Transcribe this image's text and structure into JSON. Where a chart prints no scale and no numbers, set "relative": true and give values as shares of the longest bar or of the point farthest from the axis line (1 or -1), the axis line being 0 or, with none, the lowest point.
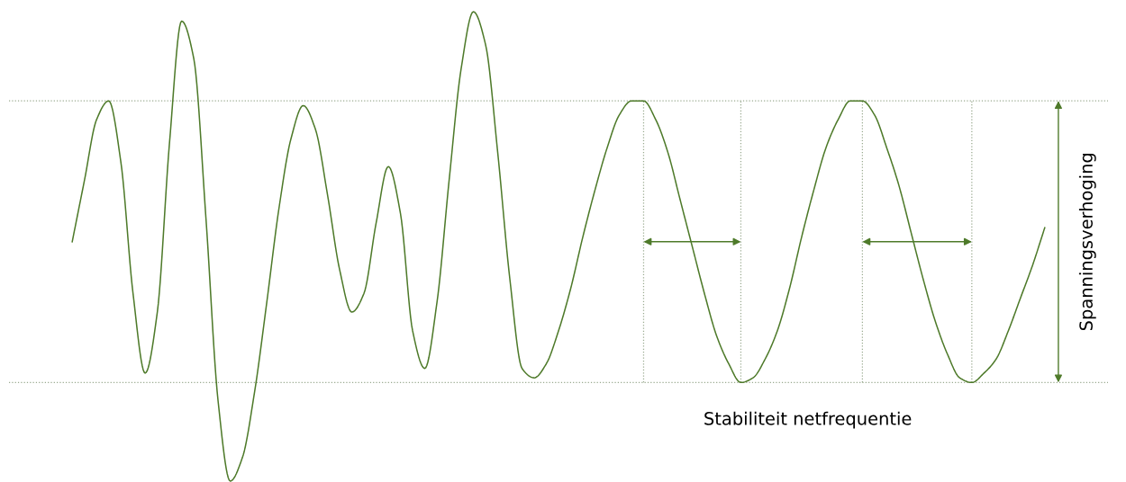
{
  "chart_data": {
    "type": "line",
    "relative": true,
    "tick_labels": false,
    "categories": [
      null,
      null,
      null,
      null,
      null,
      null,
      null,
      null,
      null,
      null,
      null,
      null,
      null,
      null,
      null,
      null,
      null,
      null,
      null,
      null,
      null,
      null,
      null,
      null,
      null,
      null,
      null,
      null,
      null,
      null,
      null,
      null,
      null,
      null,
      null,
      null,
      null,
      null,
      null,
      null,
      null,
      null,
      null,
      null,
      null,
      null,
      null,
      null,
      null,
      null,
      null,
      null,
      null,
      null,
      null,
      null,
      null,
      null,
      null,
      null,
      null,
      null,
      null,
      null,
      null,
      null,
      null,
      null,
      null,
      null,
      null,
      null,
      null,
      null,
      null,
      null,
      null,
      null,
      null,
      null,
      null
    ],
    "series": [
      {
        "color": "#4e7a2a",
        "values": [
          0.51,
          0.64,
          0.77,
          0.81,
          0.68,
          0.4,
          0.23,
          0.36,
          0.72,
          0.98,
          0.9,
          0.56,
          0.17,
          0.0,
          0.05,
          0.19,
          0.38,
          0.58,
          0.73,
          0.8,
          0.75,
          0.61,
          0.45,
          0.36,
          0.4,
          0.55,
          0.67,
          0.57,
          0.32,
          0.24,
          0.38,
          0.64,
          0.88,
          1.0,
          0.93,
          0.7,
          0.43,
          0.24,
          0.22,
          0.25,
          0.32,
          0.41,
          0.52,
          0.62,
          0.71,
          0.78,
          0.81,
          0.81,
          0.77,
          0.7,
          0.6,
          0.5,
          0.4,
          0.31,
          0.25,
          0.21,
          0.22,
          0.26,
          0.32,
          0.41,
          0.52,
          0.62,
          0.71,
          0.77,
          0.81,
          0.81,
          0.78,
          0.71,
          0.63,
          0.53,
          0.43,
          0.34,
          0.27,
          0.22,
          0.21,
          0.23,
          0.26,
          0.32,
          0.39,
          0.46,
          0.54
        ]
      }
    ],
    "ref_lines": [
      {
        "axis": "y",
        "value": 0.81,
        "color": "#9aaa90",
        "line_style": "dotted"
      },
      {
        "axis": "y",
        "value": 0.21,
        "color": "#9aaa90",
        "line_style": "dotted"
      }
    ],
    "annotations": [
      "Stabiliteit netfrequentie",
      "Spanningsverhoging"
    ]
  }
}
